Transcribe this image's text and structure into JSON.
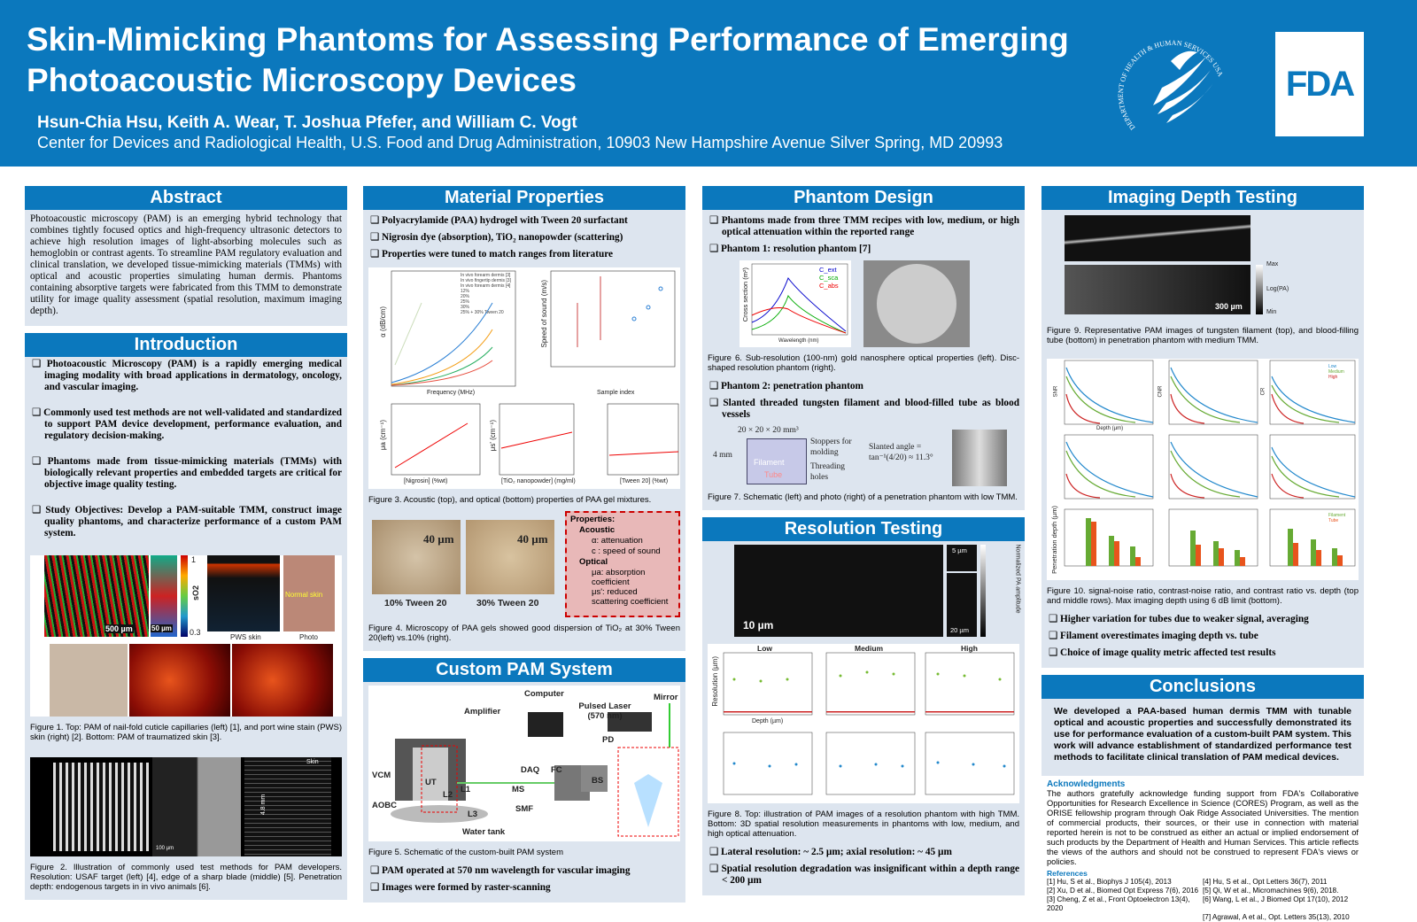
{
  "header": {
    "title": "Skin-Mimicking Phantoms for Assessing Performance of Emerging Photoacoustic Microscopy Devices",
    "authors": "Hsun-Chia Hsu, Keith A. Wear, T. Joshua Pfefer, and William C. Vogt",
    "affiliation": "Center for Devices and Radiological Health, U.S. Food and Drug Administration, 10903 New Hampshire Avenue Silver Spring, MD 20993",
    "hhs_seal_text": "DEPARTMENT OF HEALTH & HUMAN SERVICES USA",
    "fda_logo": "FDA"
  },
  "abstract": {
    "title": "Abstract",
    "text": "Photoacoustic microscopy (PAM) is an emerging hybrid technology that combines tightly focused optics and high-frequency ultrasonic detectors to achieve high resolution images of light-absorbing molecules such as hemoglobin or contrast agents. To streamline PAM regulatory evaluation and clinical translation, we developed tissue-mimicking materials (TMMs) with optical and acoustic properties simulating human dermis. Phantoms containing absorptive targets were fabricated from this TMM to demonstrate utility for image quality assessment (spatial resolution, maximum imaging depth)."
  },
  "introduction": {
    "title": "Introduction",
    "bullets": [
      "Photoacoustic Microscopy (PAM) is a rapidly emerging medical imaging modality with broad applications in dermatology, oncology, and vascular imaging.",
      "Commonly used test methods are not well-validated and standardized to support PAM device development, performance evaluation, and regulatory decision-making.",
      "Phantoms made from tissue-mimicking materials (TMMs) with biologically relevant properties and embedded targets are critical for objective image quality testing.",
      "Study Objectives: Develop a PAM-suitable TMM, construct image quality phantoms, and characterize performance of a custom PAM system."
    ],
    "fig1_labels": [
      "500 µm",
      "50 µm",
      "sO2",
      "1",
      "0.3",
      "PWS skin",
      "Photo",
      "Normal skin"
    ],
    "fig1_caption": "Figure 1. Top: PAM of nail-fold cuticle capillaries (left) [1], and port wine stain (PWS) skin (right) [2]. Bottom: PAM of traumatized skin [3].",
    "fig2_labels": [
      "100 µm",
      "4.8 mm",
      "Skin"
    ],
    "fig2_caption": "Figure 2. Illustration of commonly used test methods for PAM developers. Resolution: USAF target (left) [4], edge of a sharp blade (middle) [5]. Penetration depth: endogenous targets in in vivo animals [6]."
  },
  "material": {
    "title": "Material Properties",
    "bullets": [
      "Polyacrylamide (PAA) hydrogel with Tween 20 surfactant",
      "Nigrosin dye (absorption), TiO₂ nanopowder (scattering)",
      "Properties were tuned to match ranges from literature"
    ],
    "fig3_axes": [
      "Frequency (MHz)",
      "α (dB/cm)",
      "Speed of sound (m/s)",
      "Sample index",
      "[Nigrosin] (%wt)",
      "μa (cm⁻¹)",
      "[TiO₂ nanopowder] (mg/ml)",
      "μs' (cm⁻¹)",
      "[Tween 20] (%wt)"
    ],
    "fig3_legend": [
      "In vivo forearm dermis [3]",
      "In vivo fingertip dermis [3]",
      "In vivo forearm dermis [4]",
      "12%",
      "20%",
      "25%",
      "30%",
      "25% + 30% Tween 20"
    ],
    "fig3_caption": "Figure 3. Acoustic (top), and optical (bottom) properties of PAA gel mixtures.",
    "fig4_images": [
      {
        "scale": "40 µm",
        "label": "10% Tween 20"
      },
      {
        "scale": "40 µm",
        "label": "30% Tween 20"
      }
    ],
    "properties_box": [
      "Properties:",
      "Acoustic",
      "α: attenuation",
      "c : speed of sound",
      "Optical",
      "μa: absorption coefficient",
      "μs': reduced scattering coefficient"
    ],
    "fig4_caption": "Figure 4. Microscopy of PAA gels showed good dispersion of TiO₂ at 30% Tween 20(left) vs.10% (right)."
  },
  "pam_system": {
    "title": "Custom PAM System",
    "labels": [
      "Computer",
      "Mirror",
      "Amplifier",
      "Pulsed Laser (570 nm)",
      "PD",
      "DAQ",
      "FC",
      "BS",
      "VCM",
      "UT",
      "L2",
      "L1",
      "MS",
      "AOBC",
      "L3",
      "SMF",
      "Water tank"
    ],
    "fig5_caption": "Figure 5. Schematic of the custom-built PAM system",
    "bullets": [
      "PAM operated at 570 nm wavelength for vascular imaging",
      "Images were formed by raster-scanning"
    ]
  },
  "phantom_design": {
    "title": "Phantom Design",
    "bullets": [
      "Phantoms made from three TMM recipes with low, medium, or high optical attenuation within the reported range",
      "Phantom 1: resolution phantom [7]"
    ],
    "fig6_axes": [
      "Wavelength (nm)",
      "Cross section (m²)"
    ],
    "fig6_legend": [
      "C_ext",
      "C_sca",
      "C_abs"
    ],
    "fig6_caption": "Figure 6. Sub-resolution (100-nm) gold nanosphere optical properties (left). Disc-shaped resolution phantom (right).",
    "bullets2": [
      "Phantom 2: penetration phantom",
      "Slanted threaded tungsten filament and blood-filled tube as blood vessels"
    ],
    "fig7_labels": [
      "20 × 20 × 20 mm³",
      "4 mm",
      "Stoppers for molding",
      "Threading holes",
      "Filament",
      "Tube",
      "Slanted angle = tan⁻¹(4/20) ≈ 11.3°"
    ],
    "fig7_caption": "Figure 7. Schematic (left) and photo (right) of a penetration phantom with low TMM."
  },
  "resolution": {
    "title": "Resolution Testing",
    "fig8_labels": [
      "10 µm",
      "5 µm",
      "20 µm",
      "Normalized PA amplitude",
      "Low",
      "Medium",
      "High",
      "Depth (µm)",
      "Resolution (µm)"
    ],
    "fig8_caption": "Figure 8. Top: illustration of PAM images of a resolution phantom with high TMM. Bottom: 3D spatial resolution measurements in phantoms with low, medium, and high optical attenuation.",
    "bullets": [
      "Lateral resolution: ~ 2.5 µm; axial resolution: ~ 45 µm",
      "Spatial resolution degradation was insignificant within a depth range < 200 µm"
    ]
  },
  "depth": {
    "title": "Imaging Depth Testing",
    "fig9_labels": [
      "300 µm",
      "Max",
      "Log(PA)",
      "Min"
    ],
    "fig9_caption": "Figure 9. Representative PAM images of tungsten filament (top), and blood-filling tube (bottom) in penetration phantom with medium TMM.",
    "fig10_axes": [
      "SNR",
      "CNR",
      "CR",
      "Depth (µm)",
      "Penetration depth (µm)"
    ],
    "fig10_legend": [
      "Low",
      "Medium",
      "High",
      "Filament",
      "Tube"
    ],
    "fig10_caption": "Figure 10. signal-noise ratio, contrast-noise ratio, and contrast ratio vs. depth (top and middle rows). Max imaging depth using 6 dB limit (bottom).",
    "bullets": [
      "Higher variation for tubes due to weaker signal, averaging",
      "Filament overestimates imaging depth vs. tube",
      "Choice of image quality metric affected test results"
    ]
  },
  "conclusions": {
    "title": "Conclusions",
    "text": "We developed a PAA-based human dermis TMM with tunable optical and acoustic properties and successfully demonstrated its use for performance evaluation of a custom-built PAM system. This work will advance establishment of standardized performance test methods to facilitate clinical translation of PAM medical devices."
  },
  "acknowledgments": {
    "title": "Acknowledgments",
    "text": "The authors gratefully acknowledge funding support from FDA's Collaborative Opportunities for Research Excellence in Science (CORES) Program, as well as the ORISE fellowship program through Oak Ridge Associated Universities. The mention of commercial products, their sources, or their use in connection with material reported herein is not to be construed as either an actual or implied endorsement of such products by the Department of Health and Human Services. This article reflects the views of the authors and should not be construed to represent FDA's views or policies."
  },
  "references": {
    "title": "References",
    "items": [
      "[1] Hu, S et al., Biophys J 105(4), 2013",
      "[4] Hu, S et al., Opt Letters 36(7), 2011",
      "[2] Xu, D et al., Biomed Opt Express 7(6), 2016",
      "[5] Qi, W et al., Micromachines 9(6), 2018.",
      "[3] Cheng, Z et al., Front Optoelectron 13(4), 2020",
      "[6] Wang, L et al., J Biomed Opt 17(10), 2012",
      "",
      "[7] Agrawal, A et al., Opt. Letters 35(13), 2010"
    ]
  },
  "colors": {
    "brand_blue": "#0b78bd",
    "panel": "#dde5ef",
    "properties_box": "#e8b8b8"
  }
}
